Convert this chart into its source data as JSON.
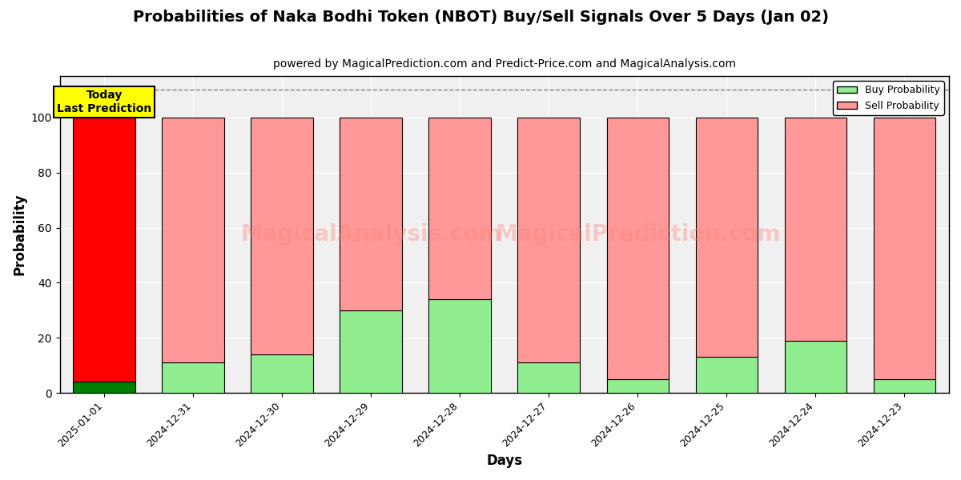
{
  "title": "Probabilities of Naka Bodhi Token (NBOT) Buy/Sell Signals Over 5 Days (Jan 02)",
  "subtitle": "powered by MagicalPrediction.com and Predict-Price.com and MagicalAnalysis.com",
  "xlabel": "Days",
  "ylabel": "Probability",
  "dates": [
    "2025-01-01",
    "2024-12-31",
    "2024-12-30",
    "2024-12-29",
    "2024-12-28",
    "2024-12-27",
    "2024-12-26",
    "2024-12-25",
    "2024-12-24",
    "2024-12-23"
  ],
  "buy_probs": [
    4,
    11,
    14,
    30,
    34,
    11,
    5,
    13,
    19,
    5
  ],
  "sell_probs": [
    96,
    89,
    86,
    70,
    66,
    89,
    95,
    87,
    81,
    95
  ],
  "today_bar_buy_color": "#008000",
  "today_bar_sell_color": "#FF0000",
  "other_buy_color": "#90EE90",
  "other_sell_color": "#FF9999",
  "bar_edge_color": "#000000",
  "annotation_bg": "#FFFF00",
  "annotation_text": "Today\nLast Prediction",
  "watermark_texts": [
    "MagicalAnalysis.com",
    "MagicalPrediction.com"
  ],
  "dashed_line_y": 110,
  "ylim": [
    0,
    115
  ],
  "yticks": [
    0,
    20,
    40,
    60,
    80,
    100
  ],
  "legend_buy_label": "Buy Probability",
  "legend_sell_label": "Sell Probability",
  "title_fontsize": 14,
  "subtitle_fontsize": 10,
  "axis_label_fontsize": 12
}
